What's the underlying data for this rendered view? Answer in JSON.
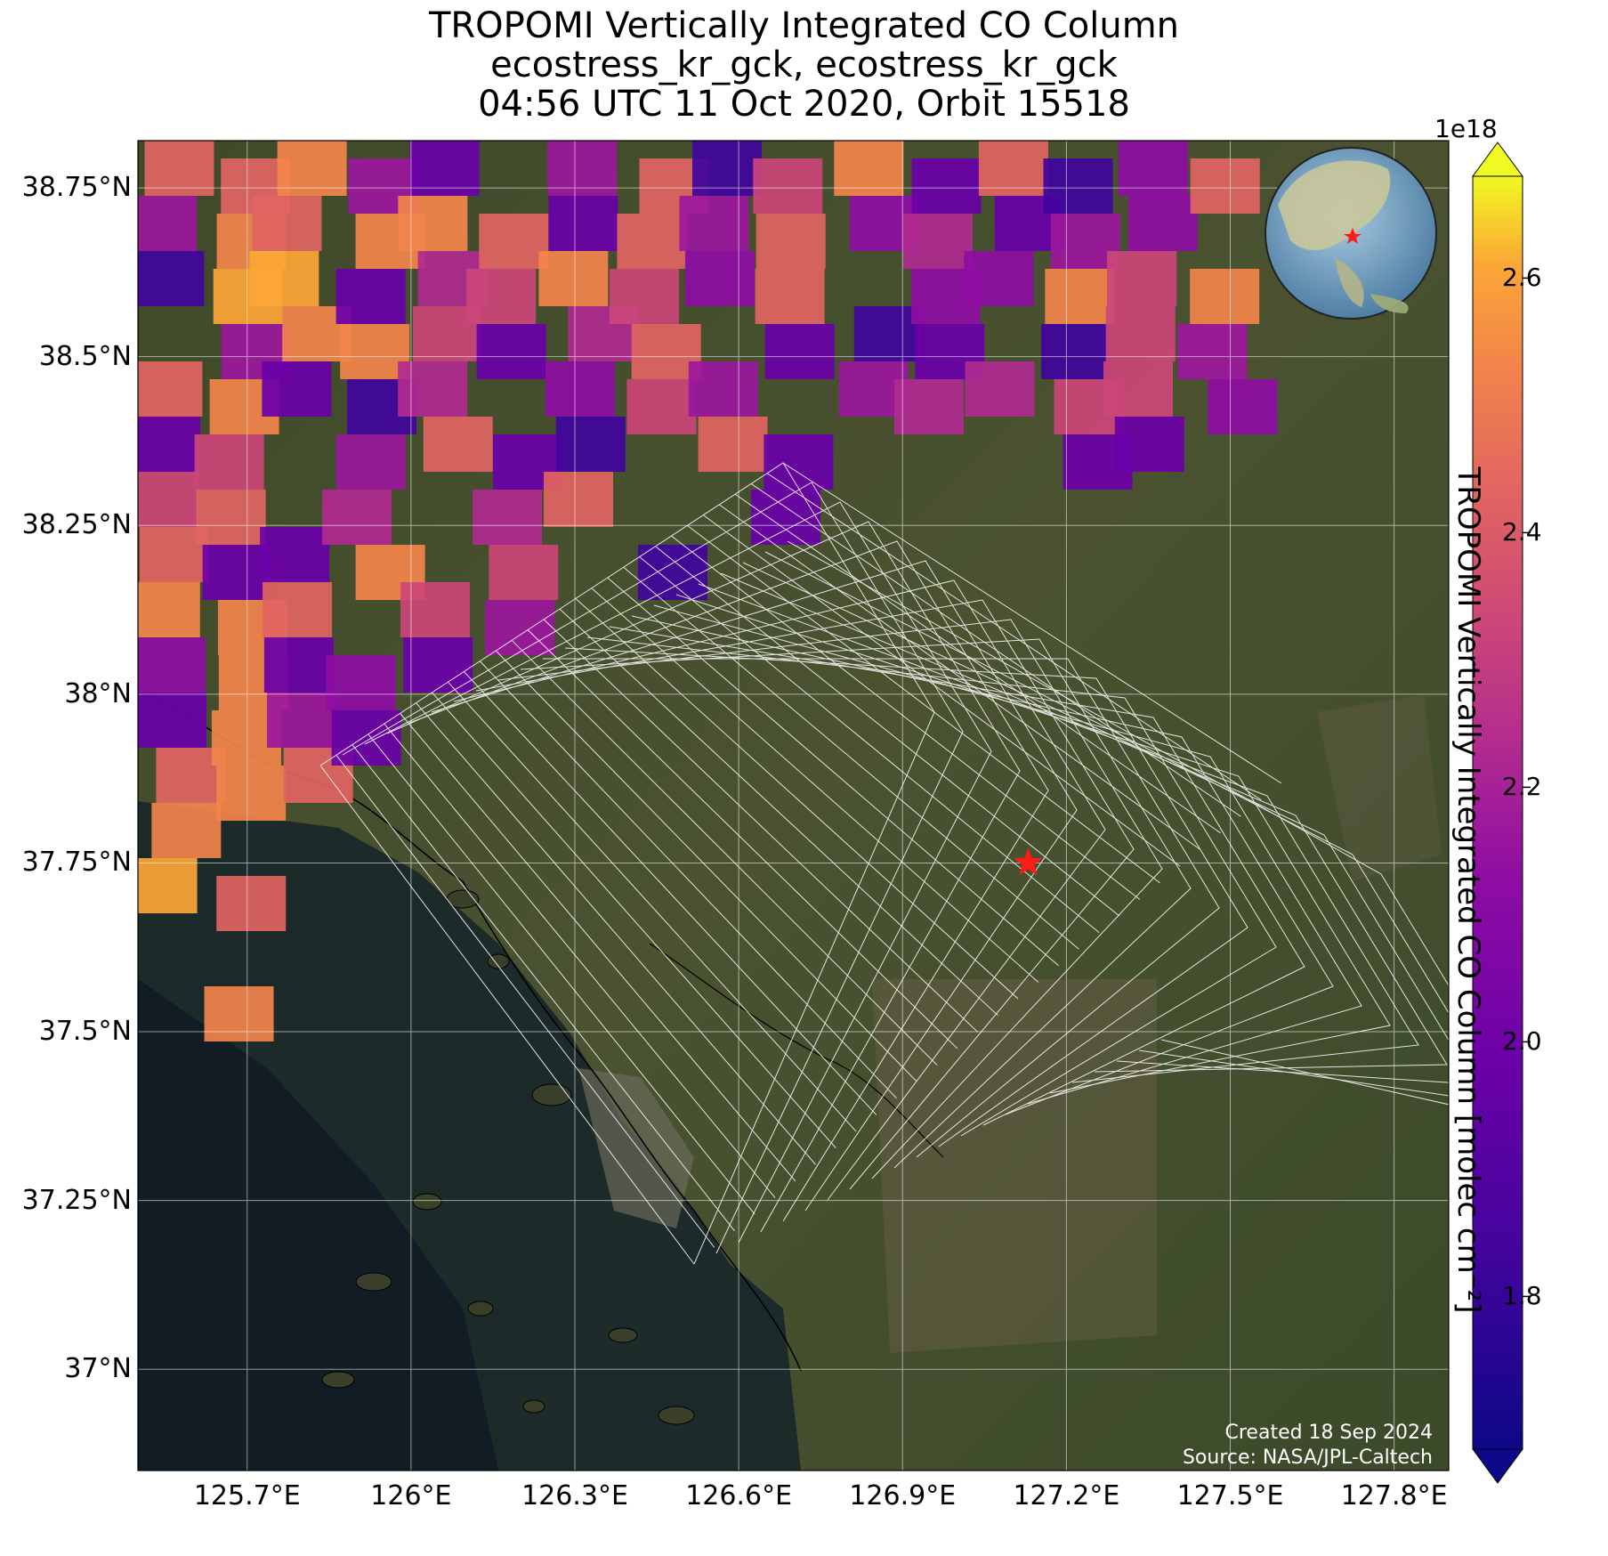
{
  "title": {
    "line1": "TROPOMI Vertically Integrated CO Column",
    "line2": "ecostress_kr_gck, ecostress_kr_gck",
    "line3": "04:56 UTC 11 Oct 2020, Orbit 15518"
  },
  "map": {
    "lon_range": [
      125.5,
      127.9
    ],
    "lat_range": [
      36.85,
      38.82
    ],
    "lat_ticks": [
      "38.75°N",
      "38.5°N",
      "38.25°N",
      "38°N",
      "37.75°N",
      "37.5°N",
      "37.25°N",
      "37°N"
    ],
    "lat_values": [
      38.75,
      38.5,
      38.25,
      38.0,
      37.75,
      37.5,
      37.25,
      37.0
    ],
    "lon_ticks": [
      "125.7°E",
      "126°E",
      "126.3°E",
      "126.6°E",
      "126.9°E",
      "127.2°E",
      "127.5°E",
      "127.8°E"
    ],
    "lon_values": [
      125.7,
      126.0,
      126.3,
      126.6,
      126.9,
      127.2,
      127.5,
      127.8
    ],
    "target_marker": {
      "lon": 127.13,
      "lat": 37.75,
      "color": "#ff1a1a"
    },
    "inset_globe": {
      "region": "East Asia",
      "marker": "star"
    },
    "gridlines": true
  },
  "colorbar": {
    "label": "TROPOMI Vertically Integrated CO Column [molec cm⁻²]",
    "exponent": "1e18",
    "colormap": "plasma",
    "range": [
      1.68,
      2.68
    ],
    "ticks": [
      "1.8",
      "2.0",
      "2.2",
      "2.4",
      "2.6"
    ],
    "tick_values": [
      1.8,
      2.0,
      2.2,
      2.4,
      2.6
    ],
    "extend": "both"
  },
  "credits": {
    "created": "Created 18 Sep 2024",
    "source": "Source: NASA/JPL-Caltech"
  }
}
